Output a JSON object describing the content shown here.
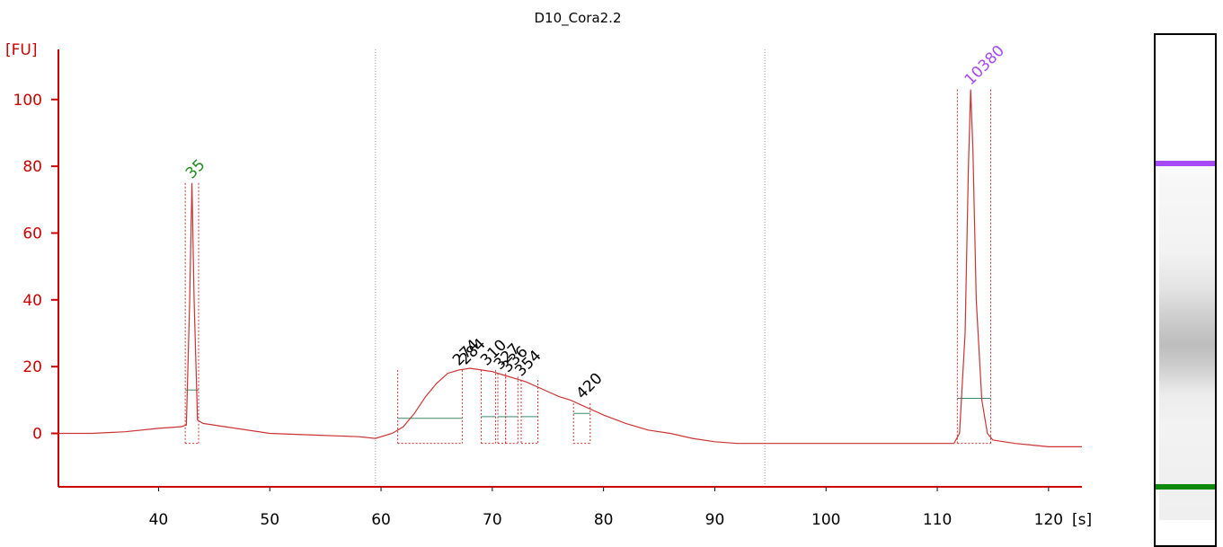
{
  "chart_data": {
    "type": "line",
    "title": "D10_Cora2.2",
    "ylabel": "[FU]",
    "xunit": "[s]",
    "xlim": [
      31,
      123
    ],
    "ylim": [
      -16,
      115
    ],
    "yticks": [
      0,
      20,
      40,
      60,
      80,
      100
    ],
    "xticks": [
      40,
      50,
      60,
      70,
      80,
      90,
      100,
      110,
      120
    ],
    "grid": false,
    "dotted_vlines": [
      59.5,
      94.5
    ],
    "series": [
      {
        "color": "#cc3333",
        "points": [
          [
            31,
            0
          ],
          [
            34,
            0
          ],
          [
            37,
            0.5
          ],
          [
            40,
            1.5
          ],
          [
            42,
            2
          ],
          [
            42.5,
            2.5
          ],
          [
            42.8,
            40
          ],
          [
            43.0,
            75
          ],
          [
            43.2,
            40
          ],
          [
            43.5,
            4
          ],
          [
            44,
            3
          ],
          [
            46,
            2
          ],
          [
            50,
            0
          ],
          [
            54,
            -0.5
          ],
          [
            58,
            -1
          ],
          [
            59.5,
            -1.5
          ],
          [
            61,
            0
          ],
          [
            62,
            2
          ],
          [
            63,
            6
          ],
          [
            64,
            11
          ],
          [
            65,
            15
          ],
          [
            66,
            18
          ],
          [
            67,
            19
          ],
          [
            68,
            19.5
          ],
          [
            69,
            19
          ],
          [
            70,
            18.5
          ],
          [
            71,
            17.5
          ],
          [
            72,
            16.5
          ],
          [
            73,
            15.5
          ],
          [
            74,
            14
          ],
          [
            75,
            12.5
          ],
          [
            76,
            11
          ],
          [
            77,
            10
          ],
          [
            78,
            8.5
          ],
          [
            79,
            7
          ],
          [
            80,
            5.5
          ],
          [
            82,
            3
          ],
          [
            84,
            1
          ],
          [
            86,
            0
          ],
          [
            88,
            -1.5
          ],
          [
            90,
            -2.5
          ],
          [
            92,
            -3
          ],
          [
            94.5,
            -3
          ],
          [
            100,
            -3
          ],
          [
            105,
            -3
          ],
          [
            110,
            -3
          ],
          [
            111.5,
            -3
          ],
          [
            112,
            0
          ],
          [
            112.5,
            30
          ],
          [
            112.8,
            80
          ],
          [
            113.0,
            103
          ],
          [
            113.2,
            85
          ],
          [
            113.5,
            40
          ],
          [
            114,
            10
          ],
          [
            114.5,
            0
          ],
          [
            115,
            -2
          ],
          [
            117,
            -3
          ],
          [
            120,
            -4
          ],
          [
            123,
            -4
          ]
        ]
      }
    ],
    "peaks": [
      {
        "label": "35",
        "x": 43.0,
        "y": 75,
        "color": "#1e8c1e"
      },
      {
        "label": "10380",
        "x": 113.0,
        "y": 103,
        "color": "#a64bf4"
      },
      {
        "label": "274",
        "x": 67.0,
        "y": 19,
        "color": "#000000"
      },
      {
        "label": "284",
        "x": 67.6,
        "y": 19.3,
        "color": "#000000"
      },
      {
        "label": "310",
        "x": 69.5,
        "y": 19,
        "color": "#000000"
      },
      {
        "label": "327",
        "x": 70.7,
        "y": 17.8,
        "color": "#000000"
      },
      {
        "label": "336",
        "x": 71.4,
        "y": 17,
        "color": "#000000"
      },
      {
        "label": "354",
        "x": 72.6,
        "y": 15.8,
        "color": "#000000"
      },
      {
        "label": "420",
        "x": 78.1,
        "y": 9,
        "color": "#000000"
      }
    ],
    "peak_regions": [
      {
        "x1": 42.4,
        "x2": 43.6,
        "base": 13,
        "top": 75
      },
      {
        "x1": 61.5,
        "x2": 67.3,
        "base": 4.5,
        "top": 19
      },
      {
        "x1": 69,
        "x2": 70.3,
        "base": 5,
        "top": 19
      },
      {
        "x1": 70.5,
        "x2": 71.2,
        "base": 5,
        "top": 18
      },
      {
        "x1": 71.2,
        "x2": 72.3,
        "base": 5,
        "top": 17
      },
      {
        "x1": 72.6,
        "x2": 74.1,
        "base": 5,
        "top": 16
      },
      {
        "x1": 77.3,
        "x2": 78.8,
        "base": 6,
        "top": 9
      },
      {
        "x1": 111.8,
        "x2": 114.8,
        "base": 10.5,
        "top": 103
      }
    ],
    "gel": {
      "bands": [
        {
          "position": 0.25,
          "color": "#a64bf4"
        },
        {
          "position": 0.88,
          "color": "#0d8a0d"
        }
      ]
    }
  }
}
